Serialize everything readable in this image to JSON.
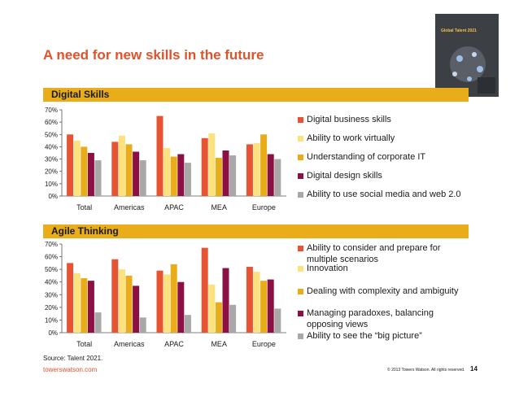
{
  "title": "A need for new skills in the future",
  "sections": {
    "digital": "Digital Skills",
    "agile": "Agile Thinking"
  },
  "colors": {
    "accent": "#e0522b",
    "section_bar": "#e8ad18",
    "series": [
      "#e65433",
      "#fbe27e",
      "#e8ad18",
      "#8c1044",
      "#a8a8a8"
    ]
  },
  "cover": {
    "title": "Global Talent 2021"
  },
  "chart_data": [
    {
      "type": "bar",
      "title": "Digital Skills",
      "categories": [
        "Total",
        "Americas",
        "APAC",
        "MEA",
        "Europe"
      ],
      "ylim": [
        0,
        70
      ],
      "yticks": [
        "0%",
        "10%",
        "20%",
        "30%",
        "40%",
        "50%",
        "60%",
        "70%"
      ],
      "unit": "%",
      "grid": false,
      "legend": "right",
      "series": [
        {
          "name": "Digital business skills",
          "values": [
            50,
            44,
            65,
            47,
            42
          ]
        },
        {
          "name": "Ability to work virtually",
          "values": [
            45,
            49,
            39,
            51,
            43
          ]
        },
        {
          "name": "Understanding of corporate IT",
          "values": [
            40,
            42,
            32,
            31,
            50
          ]
        },
        {
          "name": "Digital design skills",
          "values": [
            35,
            36,
            34,
            37,
            34
          ]
        },
        {
          "name": "Ability to use social media and web 2.0",
          "values": [
            29,
            29,
            27,
            33,
            30
          ]
        }
      ]
    },
    {
      "type": "bar",
      "title": "Agile Thinking",
      "categories": [
        "Total",
        "Americas",
        "APAC",
        "MEA",
        "Europe"
      ],
      "ylim": [
        0,
        70
      ],
      "yticks": [
        "0%",
        "10%",
        "20%",
        "30%",
        "40%",
        "50%",
        "60%",
        "70%"
      ],
      "unit": "%",
      "grid": false,
      "legend": "right",
      "series": [
        {
          "name": "Ability to consider and prepare for multiple scenarios",
          "values": [
            55,
            58,
            49,
            67,
            52
          ]
        },
        {
          "name": "Innovation",
          "values": [
            47,
            50,
            46,
            38,
            48
          ]
        },
        {
          "name": "Dealing with complexity and ambiguity",
          "values": [
            43,
            45,
            54,
            24,
            41
          ]
        },
        {
          "name": "Managing paradoxes, balancing opposing views",
          "values": [
            41,
            37,
            40,
            51,
            42
          ]
        },
        {
          "name": "Ability to see the “big picture”",
          "values": [
            16,
            12,
            14,
            22,
            19
          ]
        }
      ]
    }
  ],
  "legend_digital": [
    "Digital business skills",
    "Ability to work virtually",
    "Understanding of corporate IT",
    "Digital design skills",
    "Ability to use social media and web 2.0"
  ],
  "legend_agile": [
    "Ability to consider and prepare for multiple scenarios",
    "Innovation",
    "Dealing with complexity and ambiguity",
    "Managing paradoxes, balancing opposing views",
    "Ability to see the “big picture”"
  ],
  "footer": {
    "source": "Source: Talent 2021.",
    "brand": "towerswatson.com",
    "copyright": "© 2013 Towers Watson. All rights reserved.",
    "page": "14"
  }
}
